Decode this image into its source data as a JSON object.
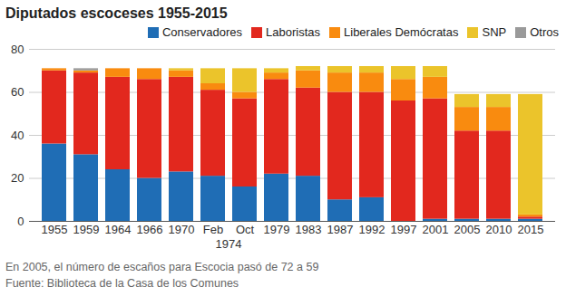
{
  "chart_data": {
    "type": "bar",
    "title": "Diputados escoceses 1955-2015",
    "categories": [
      "1955",
      "1959",
      "1964",
      "1966",
      "1970",
      "Feb",
      "Oct",
      "1979",
      "1983",
      "1987",
      "1992",
      "1997",
      "2001",
      "2005",
      "2010",
      "2015"
    ],
    "annotations": [
      {
        "text": "1974",
        "categories": [
          "Feb",
          "Oct"
        ]
      }
    ],
    "series": [
      {
        "name": "Conservadores",
        "color": "#1f6db5",
        "values": [
          36,
          31,
          24,
          20,
          23,
          21,
          16,
          22,
          21,
          10,
          11,
          0,
          1,
          1,
          1,
          1
        ]
      },
      {
        "name": "Laboristas",
        "color": "#e2281e",
        "values": [
          34,
          38,
          43,
          46,
          44,
          40,
          41,
          44,
          41,
          50,
          49,
          56,
          56,
          41,
          41,
          1
        ]
      },
      {
        "name": "Liberales Demócratas",
        "color": "#f98b0f",
        "values": [
          1,
          1,
          4,
          5,
          3,
          3,
          3,
          3,
          8,
          9,
          9,
          10,
          10,
          11,
          11,
          1
        ]
      },
      {
        "name": "SNP",
        "color": "#ebc42b",
        "values": [
          0,
          0,
          0,
          0,
          1,
          7,
          11,
          2,
          2,
          3,
          3,
          6,
          5,
          6,
          6,
          56
        ]
      },
      {
        "name": "Otros",
        "color": "#9a9a9a",
        "values": [
          0,
          1,
          0,
          0,
          0,
          0,
          0,
          0,
          0,
          0,
          0,
          0,
          0,
          0,
          0,
          0
        ]
      }
    ],
    "stacked": true,
    "ylim": [
      0,
      80
    ],
    "yticks": [
      0,
      20,
      40,
      60,
      80
    ],
    "grid": true,
    "legend": "top-right",
    "notes": [
      "En 2005, el número de escaños para Escocia pasó de 72 a 59",
      "Fuente: Biblioteca de la Casa de los Comunes"
    ]
  }
}
